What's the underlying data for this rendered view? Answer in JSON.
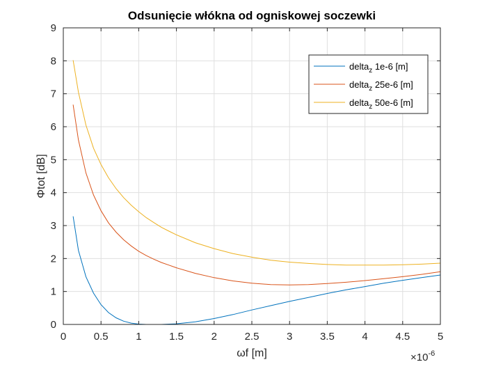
{
  "chart_data": {
    "type": "line",
    "title": "Odsunięcie włókna od ogniskowej soczewki",
    "xlabel": "ωf [m]",
    "ylabel": "Φtot [dB]",
    "x_exponent_label": "×10",
    "x_exponent": "-6",
    "xlim": [
      0,
      5e-06
    ],
    "ylim": [
      0,
      9
    ],
    "x_ticks": [
      0,
      5e-07,
      1e-06,
      1.5e-06,
      2e-06,
      2.5e-06,
      3e-06,
      3.5e-06,
      4e-06,
      4.5e-06,
      5e-06
    ],
    "x_tick_labels": [
      "0",
      "0.5",
      "1",
      "1.5",
      "2",
      "2.5",
      "3",
      "3.5",
      "4",
      "4.5",
      "5"
    ],
    "y_ticks": [
      0,
      1,
      2,
      3,
      4,
      5,
      6,
      7,
      8,
      9
    ],
    "y_tick_labels": [
      "0",
      "1",
      "2",
      "3",
      "4",
      "5",
      "6",
      "7",
      "8",
      "9"
    ],
    "grid": true,
    "legend_position": "top-right",
    "x": [
      1.3e-07,
      2e-07,
      3e-07,
      4e-07,
      5e-07,
      6e-07,
      7e-07,
      8e-07,
      9e-07,
      1e-06,
      1.1e-06,
      1.2e-06,
      1.3e-06,
      1.4e-06,
      1.5e-06,
      1.75e-06,
      2e-06,
      2.25e-06,
      2.5e-06,
      2.75e-06,
      3e-06,
      3.25e-06,
      3.5e-06,
      3.75e-06,
      4e-06,
      4.25e-06,
      4.5e-06,
      4.75e-06,
      5e-06
    ],
    "series": [
      {
        "name_base": "delta",
        "name_sub": "z",
        "name_rest": " 1e-6 [m]",
        "color": "#0072BD",
        "values": [
          3.28,
          2.25,
          1.45,
          0.95,
          0.6,
          0.36,
          0.2,
          0.1,
          0.04,
          0.01,
          0.0,
          0.0,
          0.0,
          0.01,
          0.02,
          0.08,
          0.18,
          0.3,
          0.44,
          0.57,
          0.7,
          0.82,
          0.94,
          1.05,
          1.15,
          1.25,
          1.34,
          1.42,
          1.5
        ]
      },
      {
        "name_base": "delta",
        "name_sub": "z",
        "name_rest": " 25e-6 [m]",
        "color": "#D95319",
        "values": [
          6.67,
          5.6,
          4.6,
          3.93,
          3.45,
          3.08,
          2.8,
          2.57,
          2.38,
          2.22,
          2.09,
          1.98,
          1.88,
          1.8,
          1.72,
          1.55,
          1.42,
          1.32,
          1.25,
          1.21,
          1.2,
          1.21,
          1.24,
          1.28,
          1.33,
          1.39,
          1.45,
          1.52,
          1.6
        ]
      },
      {
        "name_base": "delta",
        "name_sub": "z",
        "name_rest": " 50e-6 [m]",
        "color": "#EDB120",
        "values": [
          8.02,
          7.05,
          6.05,
          5.35,
          4.85,
          4.45,
          4.12,
          3.85,
          3.62,
          3.42,
          3.24,
          3.09,
          2.95,
          2.83,
          2.72,
          2.48,
          2.3,
          2.15,
          2.04,
          1.95,
          1.89,
          1.85,
          1.82,
          1.8,
          1.8,
          1.8,
          1.81,
          1.83,
          1.86
        ]
      }
    ]
  }
}
